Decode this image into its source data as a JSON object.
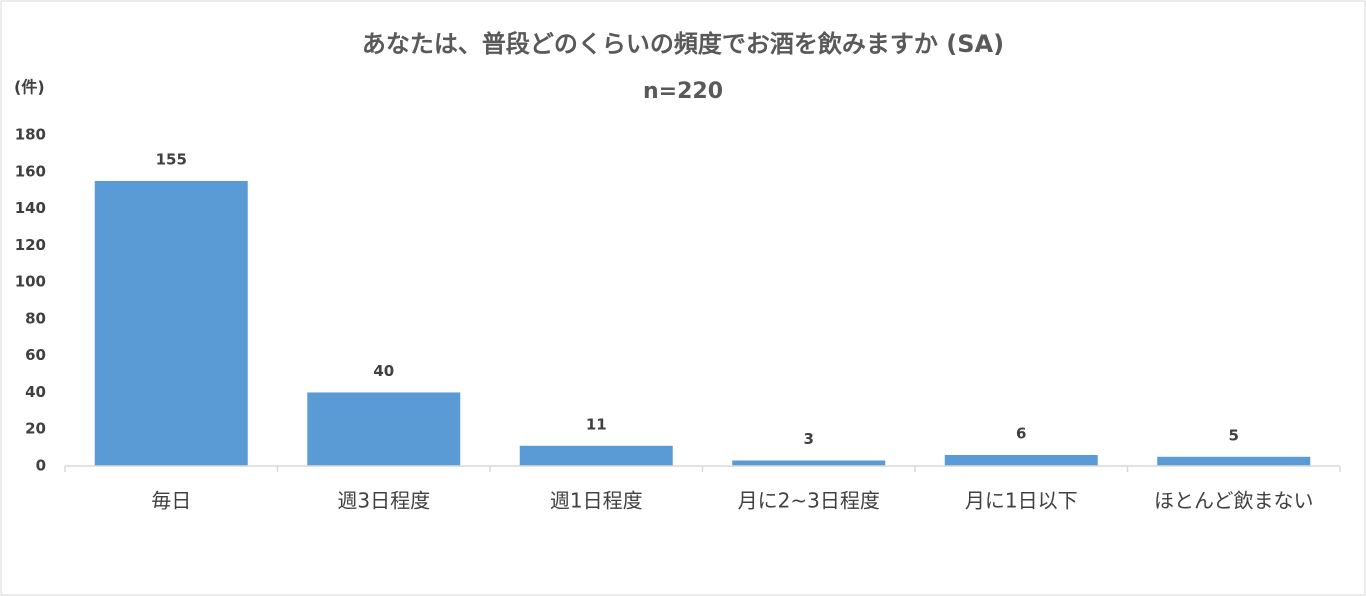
{
  "chart_data": {
    "type": "bar",
    "title": "あなたは、普段どのくらいの頻度でお酒を飲みますか (SA)",
    "subtitle": "n=220",
    "y_label": "(件)",
    "categories": [
      "毎日",
      "週3日程度",
      "週1日程度",
      "月に2~3日程度",
      "月に1日以下",
      "ほとんど飲まない"
    ],
    "values": [
      155,
      40,
      11,
      3,
      6,
      5
    ],
    "color": "#5b9bd5",
    "ylim": [
      0,
      180
    ],
    "yticks": [
      0,
      20,
      40,
      60,
      80,
      100,
      120,
      140,
      160,
      180
    ],
    "grid": false
  }
}
